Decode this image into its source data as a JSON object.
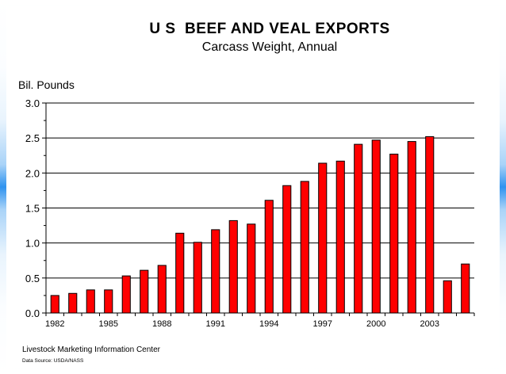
{
  "chart_data": {
    "type": "bar",
    "title": "U S  BEEF AND VEAL EXPORTS",
    "subtitle": "Carcass Weight, Annual",
    "ylabel": "Bil. Pounds",
    "xlabel": "",
    "ylim": [
      0,
      3.0
    ],
    "yticks": [
      "0.0",
      "0.5",
      "1.0",
      "1.5",
      "2.0",
      "2.5",
      "3.0"
    ],
    "grid": true,
    "bar_color": "#ff0000",
    "categories": [
      "1982",
      "1983",
      "1984",
      "1985",
      "1986",
      "1987",
      "1988",
      "1989",
      "1990",
      "1991",
      "1992",
      "1993",
      "1994",
      "1995",
      "1996",
      "1997",
      "1998",
      "1999",
      "2000",
      "2001",
      "2002",
      "2003",
      "2004",
      "2005"
    ],
    "xtick_labels": [
      "1982",
      "",
      "",
      "1985",
      "",
      "",
      "1988",
      "",
      "",
      "1991",
      "",
      "",
      "1994",
      "",
      "",
      "1997",
      "",
      "",
      "2000",
      "",
      "",
      "2003",
      "",
      ""
    ],
    "values": [
      0.25,
      0.28,
      0.33,
      0.33,
      0.53,
      0.61,
      0.68,
      1.14,
      1.01,
      1.19,
      1.32,
      1.27,
      1.61,
      1.82,
      1.88,
      2.14,
      2.17,
      2.41,
      2.47,
      2.27,
      2.45,
      2.52,
      0.46,
      0.7
    ]
  },
  "footer": {
    "source_org": "Livestock Marketing Information Center",
    "data_source": "Data Source:  USDA/NASS"
  }
}
